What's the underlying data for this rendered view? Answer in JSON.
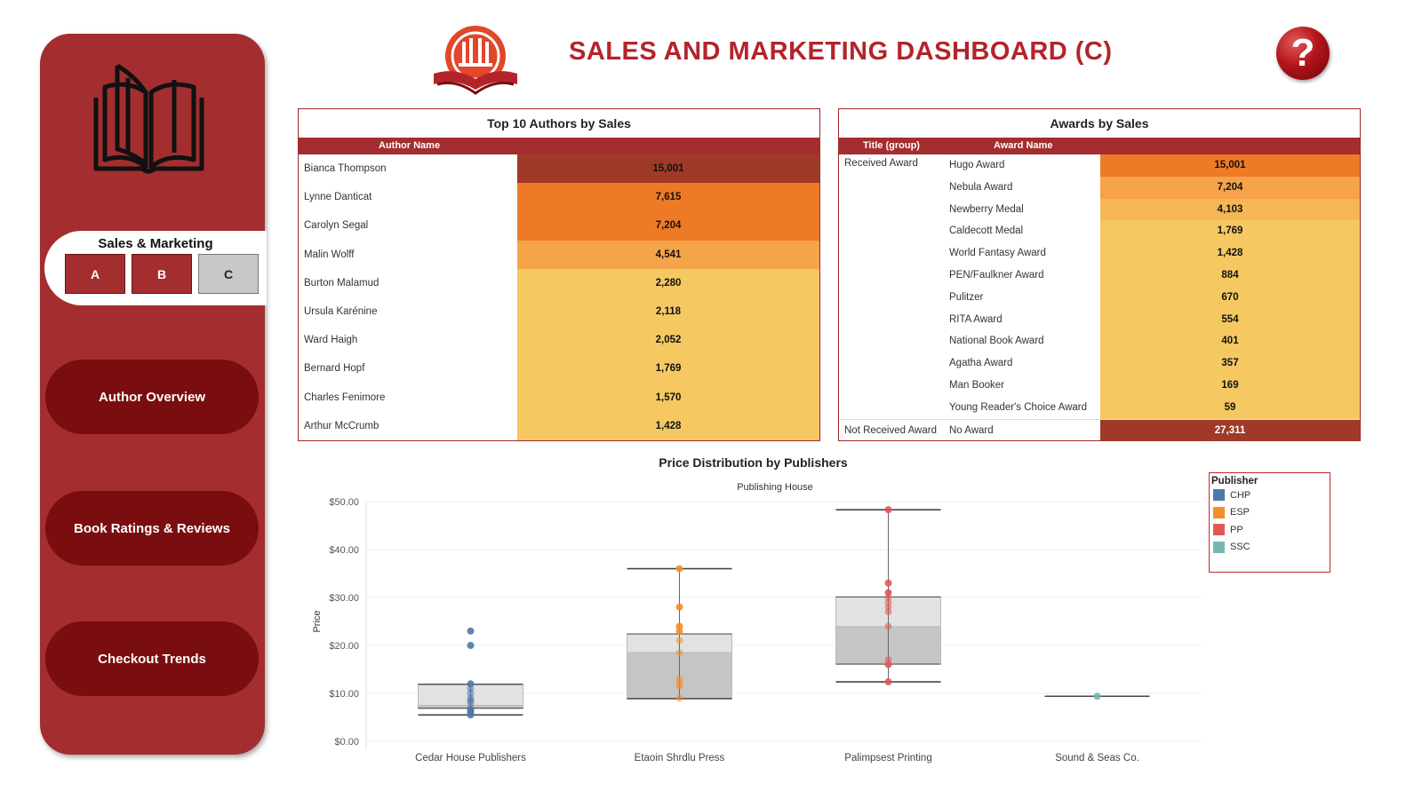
{
  "header": {
    "title": "SALES AND MARKETING DASHBOARD (C)",
    "help_label": "?"
  },
  "sidebar": {
    "tab_group_title": "Sales & Marketing",
    "tabs": [
      {
        "label": "A",
        "active": false
      },
      {
        "label": "B",
        "active": false
      },
      {
        "label": "C",
        "active": true
      }
    ],
    "nav": [
      {
        "label": "Author Overview"
      },
      {
        "label": "Book Ratings & Reviews"
      },
      {
        "label": "Checkout Trends"
      }
    ]
  },
  "colors": {
    "brand": "#a32d2f",
    "nav_dark": "#7a0d0f",
    "title": "#b3242a",
    "heat_high": "#a03a28",
    "heat_mid_high": "#ef7a26",
    "heat_mid": "#f6a44a",
    "heat_low": "#f5c862"
  },
  "top_authors": {
    "title": "Top 10 Authors by Sales",
    "column": "Author Name",
    "rows": [
      {
        "name": "Bianca Thompson",
        "value": "15,001",
        "heat": "#a03a28"
      },
      {
        "name": "Lynne Danticat",
        "value": "7,615",
        "heat": "#ef7a26"
      },
      {
        "name": "Carolyn Segal",
        "value": "7,204",
        "heat": "#ef7a26"
      },
      {
        "name": "Malin Wolff",
        "value": "4,541",
        "heat": "#f6a44a"
      },
      {
        "name": "Burton Malamud",
        "value": "2,280",
        "heat": "#f5c862"
      },
      {
        "name": "Ursula Karénine",
        "value": "2,118",
        "heat": "#f5c862"
      },
      {
        "name": "Ward Haigh",
        "value": "2,052",
        "heat": "#f5c862"
      },
      {
        "name": "Bernard Hopf",
        "value": "1,769",
        "heat": "#f5c862"
      },
      {
        "name": "Charles Fenimore",
        "value": "1,570",
        "heat": "#f5c862"
      },
      {
        "name": "Arthur McCrumb",
        "value": "1,428",
        "heat": "#f5c862"
      }
    ]
  },
  "awards": {
    "title": "Awards by Sales",
    "col_group": "Title (group)",
    "col_award": "Award Name",
    "received_label": "Received Award",
    "not_received_label": "Not Received Award",
    "rows": [
      {
        "award": "Hugo Award",
        "value": "15,001",
        "heat": "#ef7a26"
      },
      {
        "award": "Nebula Award",
        "value": "7,204",
        "heat": "#f5a24a"
      },
      {
        "award": "Newberry Medal",
        "value": "4,103",
        "heat": "#f6b656"
      },
      {
        "award": "Caldecott Medal",
        "value": "1,769",
        "heat": "#f5c862"
      },
      {
        "award": "World Fantasy Award",
        "value": "1,428",
        "heat": "#f5c862"
      },
      {
        "award": "PEN/Faulkner Award",
        "value": "884",
        "heat": "#f5c862"
      },
      {
        "award": "Pulitzer",
        "value": "670",
        "heat": "#f5c862"
      },
      {
        "award": "RITA Award",
        "value": "554",
        "heat": "#f5c862"
      },
      {
        "award": "National Book Award",
        "value": "401",
        "heat": "#f5c862"
      },
      {
        "award": "Agatha Award",
        "value": "357",
        "heat": "#f5c862"
      },
      {
        "award": "Man Booker",
        "value": "169",
        "heat": "#f5c862"
      },
      {
        "award": "Young Reader's Choice Award",
        "value": "59",
        "heat": "#f5c862"
      }
    ],
    "no_award": {
      "award": "No Award",
      "value": "27,311",
      "heat": "#a03a28"
    }
  },
  "chart_data": {
    "type": "scatter",
    "title": "Price Distribution by Publishers",
    "top_axis_label": "Publishing House",
    "ylabel": "Price",
    "ylim": [
      0,
      50
    ],
    "yticks": [
      "$0.00",
      "$10.00",
      "$20.00",
      "$30.00",
      "$40.00",
      "$50.00"
    ],
    "ytick_values": [
      0,
      10,
      20,
      30,
      40,
      50
    ],
    "categories": [
      "Cedar House Publishers",
      "Etaoin Shrdlu Press",
      "Palimpsest Printing",
      "Sound & Seas Co."
    ],
    "legend_title": "Publisher",
    "series": [
      {
        "name": "CHP",
        "color": "#4e79a7",
        "category": 0,
        "box": {
          "min": 5.5,
          "q1": 6.9,
          "median": 7.5,
          "q3": 11.9,
          "max": 11.9,
          "whisker_low": 5.5
        },
        "points": [
          23,
          20,
          12,
          11,
          10,
          9,
          8.5,
          8,
          7,
          6.5,
          6,
          5.5
        ]
      },
      {
        "name": "ESP",
        "color": "#f28e2b",
        "category": 1,
        "box": {
          "min": 8.9,
          "q1": 8.9,
          "median": 18.5,
          "q3": 22.4,
          "max": 36
        },
        "points": [
          36,
          28,
          24,
          23,
          21,
          18.5,
          13,
          12,
          11.5,
          9
        ]
      },
      {
        "name": "PP",
        "color": "#e15759",
        "category": 2,
        "box": {
          "min": 12.4,
          "q1": 16.1,
          "median": 23.9,
          "q3": 30.1,
          "max": 48.3
        },
        "points": [
          48.3,
          33,
          31,
          30,
          29,
          28,
          27,
          24,
          17,
          16,
          12.4
        ]
      },
      {
        "name": "SSC",
        "color": "#76b7b2",
        "category": 3,
        "box": {
          "min": 9.4,
          "q1": 9.4,
          "median": 9.4,
          "q3": 9.4,
          "max": 9.4
        },
        "points": [
          9.4
        ]
      }
    ]
  }
}
